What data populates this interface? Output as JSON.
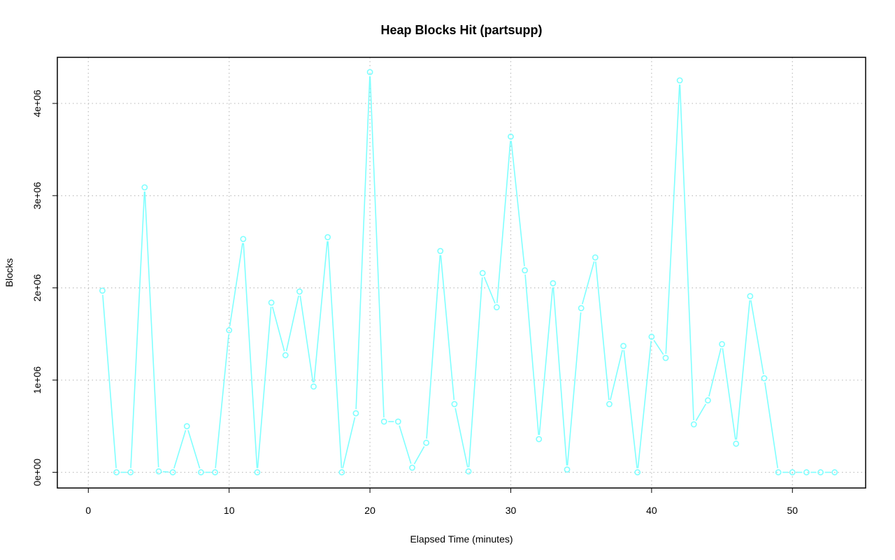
{
  "chart_data": {
    "type": "line",
    "title": "Heap Blocks Hit (partsupp)",
    "xlabel": "Elapsed Time (minutes)",
    "ylabel": "Blocks",
    "xlim": [
      -2.2,
      55.2
    ],
    "ylim": [
      -170000,
      4500000
    ],
    "x_ticks": [
      0,
      10,
      20,
      30,
      40,
      50
    ],
    "x_tick_labels": [
      "0",
      "10",
      "20",
      "30",
      "40",
      "50"
    ],
    "y_ticks": [
      0,
      1000000,
      2000000,
      3000000,
      4000000
    ],
    "y_tick_labels": [
      "0e+00",
      "1e+06",
      "2e+06",
      "3e+06",
      "4e+06"
    ],
    "grid": true,
    "colors": {
      "series": "#7fffff"
    },
    "series": [
      {
        "x": [
          1,
          2,
          3,
          4,
          5,
          6,
          7,
          8,
          9,
          10,
          11,
          12,
          13,
          14,
          15,
          16,
          17,
          18,
          19,
          20,
          21,
          22,
          23,
          24,
          25,
          26,
          27,
          28,
          29,
          30,
          31,
          32,
          33,
          34,
          35,
          36,
          37,
          38,
          39,
          40,
          41,
          42,
          43,
          44,
          45,
          46,
          47,
          48,
          49,
          50,
          51,
          52,
          53
        ],
        "values": [
          1970000,
          0,
          0,
          3090000,
          10000,
          0,
          500000,
          0,
          0,
          1540000,
          2530000,
          0,
          1840000,
          1270000,
          1960000,
          930000,
          2550000,
          0,
          640000,
          4340000,
          550000,
          550000,
          50000,
          320000,
          2400000,
          740000,
          10000,
          2160000,
          1790000,
          3640000,
          2190000,
          360000,
          2050000,
          30000,
          1780000,
          2330000,
          740000,
          1370000,
          0,
          1470000,
          1240000,
          4250000,
          520000,
          780000,
          1390000,
          310000,
          1910000,
          1020000,
          0,
          0,
          0,
          0,
          0
        ]
      }
    ]
  }
}
